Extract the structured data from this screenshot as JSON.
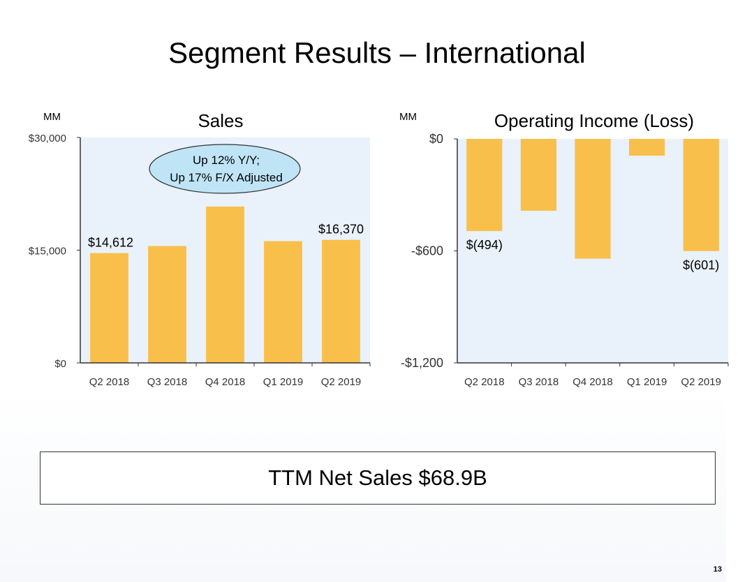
{
  "slide": {
    "title": "Segment Results – International",
    "ttm_text": "TTM Net Sales $68.9B",
    "page_number": "13"
  },
  "colors": {
    "bar": "#f9bf4b",
    "plot_bg": "#e9f1fb",
    "callout_fill": "#bfe4f6",
    "axis": "#333333"
  },
  "chart_data": [
    {
      "type": "bar",
      "title": "Sales",
      "unit_label": "MM",
      "categories": [
        "Q2 2018",
        "Q3 2018",
        "Q4 2018",
        "Q1 2019",
        "Q2 2019"
      ],
      "values": [
        14612,
        15549,
        20809,
        16195,
        16370
      ],
      "ylim": [
        0,
        30000
      ],
      "ytick_values": [
        0,
        15000,
        30000
      ],
      "ytick_labels": [
        "$0",
        "$15,000",
        "$30,000"
      ],
      "data_labels": [
        {
          "index": 0,
          "text": "$14,612"
        },
        {
          "index": 4,
          "text": "$16,370"
        }
      ],
      "annotation": [
        "Up 12% Y/Y;",
        "Up 17% F/X Adjusted"
      ],
      "grid": false
    },
    {
      "type": "bar",
      "title": "Operating Income (Loss)",
      "unit_label": "MM",
      "categories": [
        "Q2 2018",
        "Q3 2018",
        "Q4 2018",
        "Q1 2019",
        "Q2 2019"
      ],
      "values": [
        -494,
        -385,
        -642,
        -90,
        -601
      ],
      "ylim": [
        -1200,
        0
      ],
      "ytick_values": [
        0,
        -600,
        -1200
      ],
      "ytick_labels": [
        "$0",
        "-$600",
        "-$1,200"
      ],
      "data_labels": [
        {
          "index": 0,
          "text": "$(494)"
        },
        {
          "index": 4,
          "text": "$(601)"
        }
      ],
      "grid": false
    }
  ]
}
